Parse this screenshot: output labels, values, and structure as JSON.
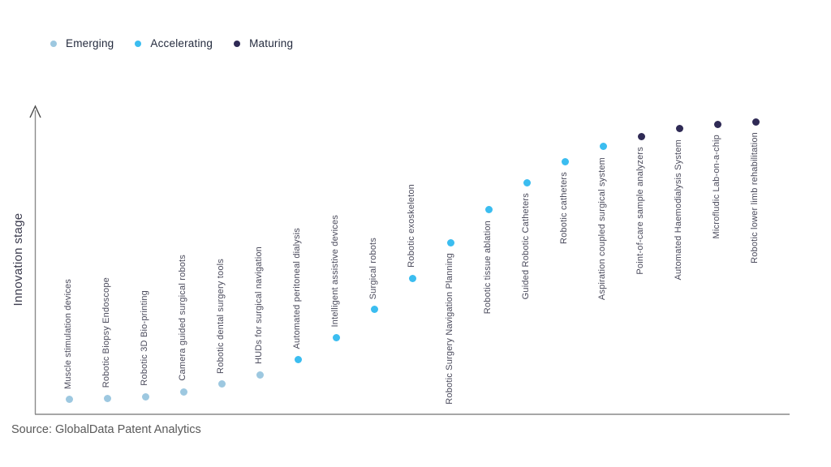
{
  "legend": {
    "items": [
      {
        "label": "Emerging",
        "color": "#9DC8E0"
      },
      {
        "label": "Accelerating",
        "color": "#3BBDF0"
      },
      {
        "label": "Maturing",
        "color": "#2F2A55"
      }
    ]
  },
  "ylabel": "Innovation stage",
  "source": "Source: GlobalData Patent Analytics",
  "chart_data": {
    "type": "scatter",
    "title": "",
    "xlabel": "",
    "ylabel": "Innovation stage",
    "y_axis": {
      "min": 0,
      "max": 100,
      "tick_labels": "none",
      "grid": false,
      "arrow": true
    },
    "legend_position": "top-left",
    "stage_colors": {
      "Emerging": "#9DC8E0",
      "Accelerating": "#3BBDF0",
      "Maturing": "#2F2A55"
    },
    "points": [
      {
        "label": "Muscle stimulation devices",
        "stage": "Emerging",
        "innovation_index": 4.5
      },
      {
        "label": "Robotic Biopsy Endoscope",
        "stage": "Emerging",
        "innovation_index": 5.0
      },
      {
        "label": "Robotic 3D Bio-printing",
        "stage": "Emerging",
        "innovation_index": 5.5
      },
      {
        "label": "Camera guided surgical robots",
        "stage": "Emerging",
        "innovation_index": 7.1
      },
      {
        "label": "Robotic dental surgery tools",
        "stage": "Emerging",
        "innovation_index": 9.5
      },
      {
        "label": "HUDs for surgical navigation",
        "stage": "Emerging",
        "innovation_index": 12.6
      },
      {
        "label": "Automated peritoneal dialysis",
        "stage": "Accelerating",
        "innovation_index": 17.6
      },
      {
        "label": "Intelligent assistive devices",
        "stage": "Accelerating",
        "innovation_index": 24.7
      },
      {
        "label": "Surgical robots",
        "stage": "Accelerating",
        "innovation_index": 33.7
      },
      {
        "label": "Robotic exoskeleton",
        "stage": "Accelerating",
        "innovation_index": 43.9
      },
      {
        "label": "Robotic Surgery Navigation Planning",
        "stage": "Accelerating",
        "innovation_index": 55.5
      },
      {
        "label": "Robotic tissue ablation",
        "stage": "Accelerating",
        "innovation_index": 66.1
      },
      {
        "label": "Guided Robotic Catheters",
        "stage": "Accelerating",
        "innovation_index": 75.0
      },
      {
        "label": "Robotic catheters",
        "stage": "Accelerating",
        "innovation_index": 81.8
      },
      {
        "label": "Aspiration coupled surgical system",
        "stage": "Accelerating",
        "innovation_index": 86.6
      },
      {
        "label": "Point-of-care sample analyzers",
        "stage": "Maturing",
        "innovation_index": 90.0
      },
      {
        "label": "Automated Haemodialysis System",
        "stage": "Maturing",
        "innovation_index": 92.4
      },
      {
        "label": "Microfludic Lab-on-a-chip",
        "stage": "Maturing",
        "innovation_index": 93.9
      },
      {
        "label": "Robotic lower limb rehabilitation",
        "stage": "Maturing",
        "innovation_index": 94.7
      }
    ]
  }
}
